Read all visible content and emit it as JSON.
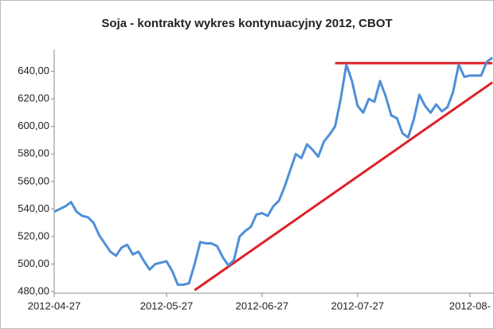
{
  "chart_data": {
    "type": "line",
    "title": "Soja - kontrakty wykres kontynuacyjny 2012, CBOT",
    "categories": [
      "2012-04-27",
      null,
      null,
      null,
      null,
      null,
      null,
      null,
      null,
      null,
      null,
      null,
      null,
      null,
      null,
      null,
      null,
      null,
      null,
      null,
      "2012-05-27",
      null,
      null,
      null,
      null,
      null,
      null,
      null,
      null,
      null,
      null,
      null,
      null,
      null,
      null,
      null,
      null,
      "2012-06-27",
      null,
      null,
      null,
      null,
      null,
      null,
      null,
      null,
      null,
      null,
      null,
      null,
      null,
      null,
      null,
      null,
      "2012-07-27",
      null,
      null,
      null,
      null,
      null,
      null,
      null,
      null,
      null,
      null,
      null,
      null,
      null,
      null,
      null,
      null,
      null,
      null,
      null,
      "2012-08-",
      null,
      null,
      null,
      null
    ],
    "series": [
      {
        "color": "#4f8fd8",
        "values": [
          538,
          540,
          542,
          545,
          538,
          535,
          534,
          530,
          521,
          515,
          509,
          506,
          512,
          514,
          507,
          509,
          502,
          496,
          500,
          501,
          502,
          495,
          485,
          485,
          486,
          500,
          516,
          515,
          515,
          513,
          505,
          499,
          503,
          520,
          524,
          527,
          536,
          537,
          535,
          542,
          546,
          556,
          568,
          580,
          577,
          587,
          583,
          578,
          589,
          594,
          600,
          620,
          645,
          633,
          615,
          610,
          620,
          618,
          633,
          622,
          608,
          606,
          595,
          592,
          605,
          623,
          615,
          610,
          616,
          611,
          614,
          625,
          645,
          636,
          637,
          637,
          637,
          647,
          650
        ]
      }
    ],
    "annotations": [
      {
        "color": "#e02028",
        "x": [
          50,
          78
        ],
        "values": [
          646,
          646
        ]
      },
      {
        "color": "#e02028",
        "x": [
          25,
          78
        ],
        "values": [
          481,
          632
        ]
      }
    ],
    "ylim": [
      480,
      656
    ],
    "yticks": [
      {
        "value": 480,
        "label": "480,00"
      },
      {
        "value": 500,
        "label": "500,00"
      },
      {
        "value": 520,
        "label": "520,00"
      },
      {
        "value": 540,
        "label": "540,00"
      },
      {
        "value": 560,
        "label": "560,00"
      },
      {
        "value": 580,
        "label": "580,00"
      },
      {
        "value": 600,
        "label": "600,00"
      },
      {
        "value": 620,
        "label": "620,00"
      },
      {
        "value": 640,
        "label": "640,00"
      }
    ],
    "grid": false
  }
}
